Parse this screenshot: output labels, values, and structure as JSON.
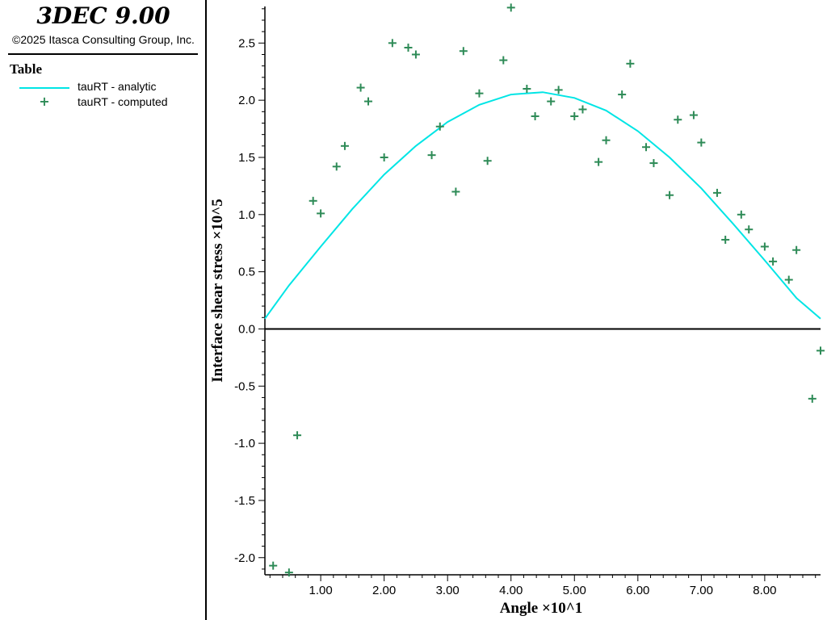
{
  "header": {
    "app_title": "3DEC 9.00",
    "copyright": "©2025 Itasca Consulting Group, Inc."
  },
  "legend": {
    "title": "Table",
    "items": [
      {
        "label": "tauRT - analytic",
        "type": "line",
        "color": "#00e5e5"
      },
      {
        "label": "tauRT - computed",
        "type": "marker",
        "color": "#2e8b57"
      }
    ]
  },
  "chart_data": {
    "type": "line",
    "title": "",
    "xlabel": "Angle ×10^1",
    "ylabel": "Interface shear stress ×10^5",
    "xlim": [
      0.12,
      8.88
    ],
    "ylim": [
      -2.15,
      2.82
    ],
    "x_ticks": [
      1.0,
      2.0,
      3.0,
      4.0,
      5.0,
      6.0,
      7.0,
      8.0
    ],
    "x_tick_labels": [
      "1.00",
      "2.00",
      "3.00",
      "4.00",
      "5.00",
      "6.00",
      "7.00",
      "8.00"
    ],
    "y_ticks": [
      -2.0,
      -1.5,
      -1.0,
      -0.5,
      0.0,
      0.5,
      1.0,
      1.5,
      2.0,
      2.5
    ],
    "y_tick_labels": [
      "-2.0",
      "-1.5",
      "-1.0",
      "-0.5",
      "0.0",
      "0.5",
      "1.0",
      "1.5",
      "2.0",
      "2.5"
    ],
    "grid": false,
    "legend_position": "left-panel",
    "series": [
      {
        "name": "tauRT - analytic",
        "type": "line",
        "color": "#00e5e5",
        "x": [
          0.12,
          0.5,
          1.0,
          1.5,
          2.0,
          2.5,
          3.0,
          3.5,
          4.0,
          4.5,
          5.0,
          5.5,
          6.0,
          6.5,
          7.0,
          7.5,
          8.0,
          8.5,
          8.88
        ],
        "y": [
          0.09,
          0.38,
          0.72,
          1.05,
          1.35,
          1.6,
          1.81,
          1.96,
          2.05,
          2.07,
          2.02,
          1.91,
          1.73,
          1.5,
          1.23,
          0.92,
          0.6,
          0.27,
          0.09
        ]
      },
      {
        "name": "tauRT - computed",
        "type": "scatter",
        "marker": "+",
        "color": "#2e8b57",
        "x": [
          0.25,
          0.5,
          0.63,
          0.88,
          1.0,
          1.25,
          1.38,
          1.63,
          1.75,
          2.0,
          2.13,
          2.38,
          2.5,
          2.75,
          2.88,
          3.13,
          3.25,
          3.5,
          3.63,
          3.88,
          4.0,
          4.25,
          4.38,
          4.63,
          4.75,
          5.0,
          5.13,
          5.38,
          5.5,
          5.75,
          5.88,
          6.13,
          6.25,
          6.5,
          6.63,
          6.88,
          7.0,
          7.25,
          7.38,
          7.63,
          7.75,
          8.0,
          8.13,
          8.38,
          8.5,
          8.75,
          8.88
        ],
        "y": [
          -2.07,
          -2.13,
          -0.93,
          1.12,
          1.01,
          1.42,
          1.6,
          2.11,
          1.99,
          1.5,
          2.5,
          2.46,
          2.4,
          1.52,
          1.77,
          1.2,
          2.43,
          2.06,
          1.47,
          2.35,
          2.81,
          2.1,
          1.86,
          1.99,
          2.09,
          1.86,
          1.92,
          1.46,
          1.65,
          2.05,
          2.32,
          1.59,
          1.45,
          1.17,
          1.83,
          1.87,
          1.63,
          1.19,
          0.78,
          1.0,
          0.87,
          0.72,
          0.59,
          0.43,
          0.69,
          -0.61,
          -0.19
        ]
      }
    ]
  }
}
